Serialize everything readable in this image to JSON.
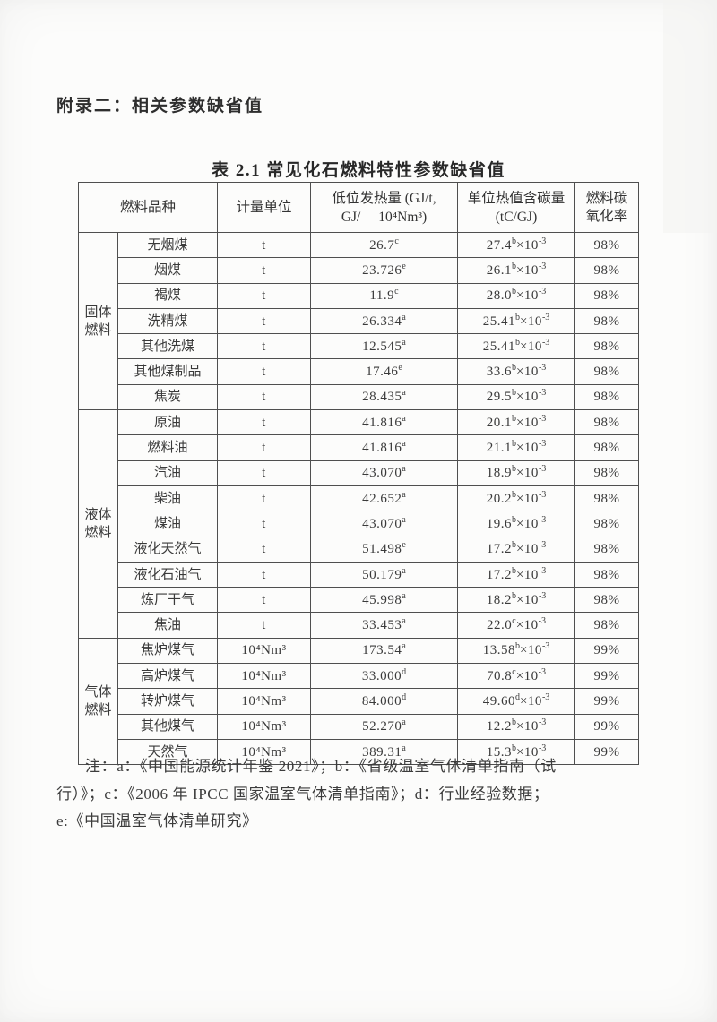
{
  "page": {
    "appendix_title": "附录二：相关参数缺省值",
    "table_caption": "表 2.1 常见化石燃料特性参数缺省值"
  },
  "table": {
    "headers": {
      "fuel": "燃料品种",
      "unit": "计量单位",
      "ncv_line1": "低位发热量 (GJ/t,",
      "ncv_line2": "GJ/ 10⁴Nm³)",
      "carbon_line1": "单位热值含碳量",
      "carbon_line2": "(tC/GJ)",
      "oxidation": "燃料碳氧化率"
    },
    "groups": [
      {
        "name": "固体燃料",
        "rows": [
          {
            "name": "无烟煤",
            "unit": "t",
            "ncv": {
              "value": "26.7",
              "src": "c"
            },
            "carbon": {
              "value": "27.4",
              "src": "b",
              "multiplier": "×10",
              "exponent": "-3"
            },
            "oxidation": "98%"
          },
          {
            "name": "烟煤",
            "unit": "t",
            "ncv": {
              "value": "23.726",
              "src": "e"
            },
            "carbon": {
              "value": "26.1",
              "src": "b",
              "multiplier": "×10",
              "exponent": "-3"
            },
            "oxidation": "98%"
          },
          {
            "name": "褐煤",
            "unit": "t",
            "ncv": {
              "value": "11.9",
              "src": "c"
            },
            "carbon": {
              "value": "28.0",
              "src": "b",
              "multiplier": "×10",
              "exponent": "-3"
            },
            "oxidation": "98%"
          },
          {
            "name": "洗精煤",
            "unit": "t",
            "ncv": {
              "value": "26.334",
              "src": "a"
            },
            "carbon": {
              "value": "25.41",
              "src": "b",
              "multiplier": "×10",
              "exponent": "-3"
            },
            "oxidation": "98%"
          },
          {
            "name": "其他洗煤",
            "unit": "t",
            "ncv": {
              "value": "12.545",
              "src": "a"
            },
            "carbon": {
              "value": "25.41",
              "src": "b",
              "multiplier": "×10",
              "exponent": "-3"
            },
            "oxidation": "98%"
          },
          {
            "name": "其他煤制品",
            "unit": "t",
            "ncv": {
              "value": "17.46",
              "src": "e"
            },
            "carbon": {
              "value": "33.6",
              "src": "b",
              "multiplier": "×10",
              "exponent": "-3"
            },
            "oxidation": "98%"
          },
          {
            "name": "焦炭",
            "unit": "t",
            "ncv": {
              "value": "28.435",
              "src": "a"
            },
            "carbon": {
              "value": "29.5",
              "src": "b",
              "multiplier": "×10",
              "exponent": "-3"
            },
            "oxidation": "98%"
          }
        ]
      },
      {
        "name": "液体燃料",
        "rows": [
          {
            "name": "原油",
            "unit": "t",
            "ncv": {
              "value": "41.816",
              "src": "a"
            },
            "carbon": {
              "value": "20.1",
              "src": "b",
              "multiplier": "×10",
              "exponent": "-3"
            },
            "oxidation": "98%"
          },
          {
            "name": "燃料油",
            "unit": "t",
            "ncv": {
              "value": "41.816",
              "src": "a"
            },
            "carbon": {
              "value": "21.1",
              "src": "b",
              "multiplier": "×10",
              "exponent": "-3"
            },
            "oxidation": "98%"
          },
          {
            "name": "汽油",
            "unit": "t",
            "ncv": {
              "value": "43.070",
              "src": "a"
            },
            "carbon": {
              "value": "18.9",
              "src": "b",
              "multiplier": "×10",
              "exponent": "-3"
            },
            "oxidation": "98%"
          },
          {
            "name": "柴油",
            "unit": "t",
            "ncv": {
              "value": "42.652",
              "src": "a"
            },
            "carbon": {
              "value": "20.2",
              "src": "b",
              "multiplier": "×10",
              "exponent": "-3"
            },
            "oxidation": "98%"
          },
          {
            "name": "煤油",
            "unit": "t",
            "ncv": {
              "value": "43.070",
              "src": "a"
            },
            "carbon": {
              "value": "19.6",
              "src": "b",
              "multiplier": "×10",
              "exponent": "-3"
            },
            "oxidation": "98%"
          },
          {
            "name": "液化天然气",
            "unit": "t",
            "ncv": {
              "value": "51.498",
              "src": "e"
            },
            "carbon": {
              "value": "17.2",
              "src": "b",
              "multiplier": "×10",
              "exponent": "-3"
            },
            "oxidation": "98%"
          },
          {
            "name": "液化石油气",
            "unit": "t",
            "ncv": {
              "value": "50.179",
              "src": "a"
            },
            "carbon": {
              "value": "17.2",
              "src": "b",
              "multiplier": "×10",
              "exponent": "-3"
            },
            "oxidation": "98%"
          },
          {
            "name": "炼厂干气",
            "unit": "t",
            "ncv": {
              "value": "45.998",
              "src": "a"
            },
            "carbon": {
              "value": "18.2",
              "src": "b",
              "multiplier": "×10",
              "exponent": "-3"
            },
            "oxidation": "98%"
          },
          {
            "name": "焦油",
            "unit": "t",
            "ncv": {
              "value": "33.453",
              "src": "a"
            },
            "carbon": {
              "value": "22.0",
              "src": "c",
              "multiplier": "×10",
              "exponent": "-3"
            },
            "oxidation": "98%"
          }
        ]
      },
      {
        "name": "气体燃料",
        "rows": [
          {
            "name": "焦炉煤气",
            "unit": "10⁴Nm³",
            "ncv": {
              "value": "173.54",
              "src": "a"
            },
            "carbon": {
              "value": "13.58",
              "src": "b",
              "multiplier": "×10",
              "exponent": "-3"
            },
            "oxidation": "99%"
          },
          {
            "name": "高炉煤气",
            "unit": "10⁴Nm³",
            "ncv": {
              "value": "33.000",
              "src": "d"
            },
            "carbon": {
              "value": "70.8",
              "src": "c",
              "multiplier": "×10",
              "exponent": "-3"
            },
            "oxidation": "99%"
          },
          {
            "name": "转炉煤气",
            "unit": "10⁴Nm³",
            "ncv": {
              "value": "84.000",
              "src": "d"
            },
            "carbon": {
              "value": "49.60",
              "src": "d",
              "multiplier": "×10",
              "exponent": "-3"
            },
            "oxidation": "99%"
          },
          {
            "name": "其他煤气",
            "unit": "10⁴Nm³",
            "ncv": {
              "value": "52.270",
              "src": "a"
            },
            "carbon": {
              "value": "12.2",
              "src": "b",
              "multiplier": "×10",
              "exponent": "-3"
            },
            "oxidation": "99%"
          },
          {
            "name": "天然气",
            "unit": "10⁴Nm³",
            "ncv": {
              "value": "389.31",
              "src": "a"
            },
            "carbon": {
              "value": "15.3",
              "src": "b",
              "multiplier": "×10",
              "exponent": "-3"
            },
            "oxidation": "99%"
          }
        ]
      }
    ]
  },
  "note": {
    "lines": [
      "注：a：《中国能源统计年鉴 2021》；b：《省级温室气体清单指南（试",
      "行）》；c：《2006 年 IPCC 国家温室气体清单指南》；d：行业经验数据；",
      "e:《中国温室气体清单研究》"
    ]
  }
}
